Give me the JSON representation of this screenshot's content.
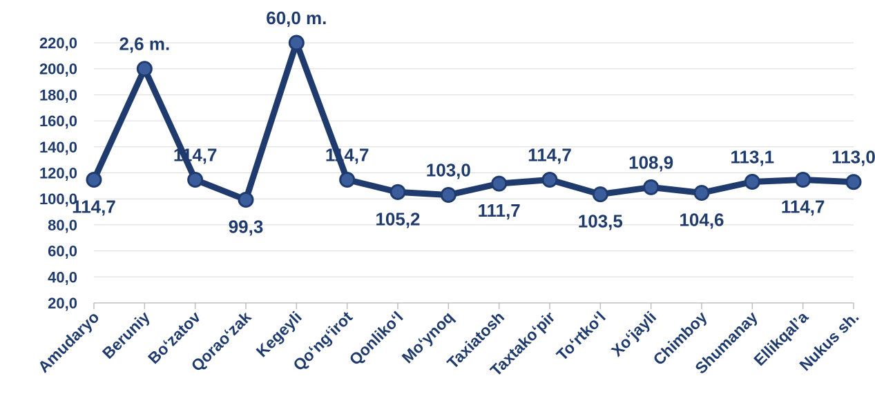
{
  "chart_data": {
    "type": "line",
    "title": "",
    "xlabel": "",
    "ylabel": "",
    "ylim": [
      20,
      220
    ],
    "yticks": [
      "20,0",
      "40,0",
      "60,0",
      "80,0",
      "100,0",
      "120,0",
      "140,0",
      "160,0",
      "180,0",
      "200,0",
      "220,0"
    ],
    "categories": [
      "Amudaryo",
      "Beruniy",
      "Bo‘zatov",
      "Qorao‘zak",
      "Kegeyli",
      "Qo‘ng‘irot",
      "Qonliko‘l",
      "Mo‘ynoq",
      "Taxiatosh",
      "Taxtako‘pir",
      "To‘rtko‘l",
      "Xo‘jayli",
      "Chimboy",
      "Shumanay",
      "Ellikqal’a",
      "Nukus sh."
    ],
    "series": [
      {
        "values": [
          114.7,
          200,
          114.7,
          99.3,
          220,
          114.7,
          105.2,
          103.0,
          111.7,
          114.7,
          103.5,
          108.9,
          104.6,
          113.1,
          114.7,
          113.0
        ]
      }
    ],
    "data_labels": [
      "114,7",
      "2,6 m.",
      "114,7",
      "99,3",
      "60,0 m.",
      "114,7",
      "105,2",
      "103,0",
      "111,7",
      "114,7",
      "103,5",
      "108,9",
      "104,6",
      "113,1",
      "114,7",
      "113,0"
    ],
    "data_label_positions": [
      "below",
      "above",
      "above",
      "below",
      "above",
      "above",
      "below",
      "above",
      "below",
      "above",
      "below",
      "above",
      "below",
      "above",
      "below",
      "above"
    ],
    "grid": true,
    "colors": {
      "line": "#1f3b6e",
      "marker": "#3b5d9c",
      "text": "#1f3b6e"
    }
  }
}
